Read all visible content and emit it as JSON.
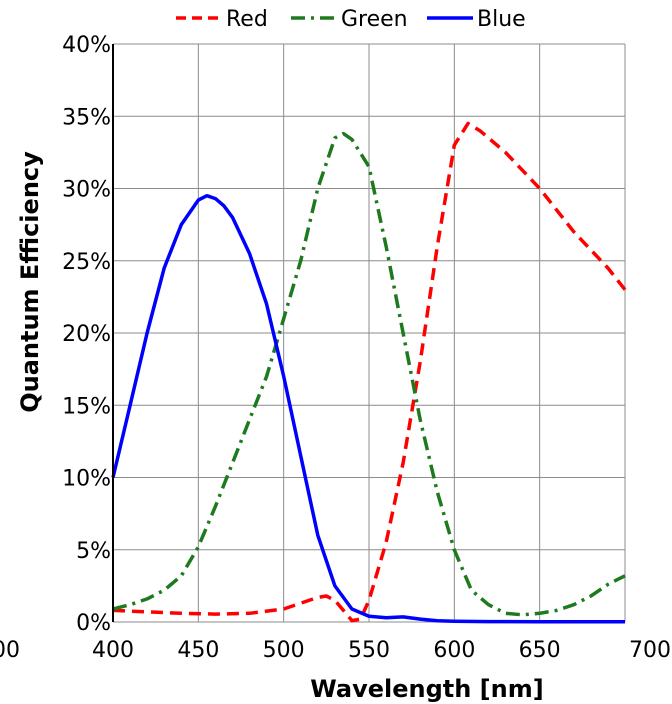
{
  "chart_data": {
    "type": "line",
    "xlabel": "Wavelength [nm]",
    "ylabel": "Quantum Efficiency",
    "xlim": [
      400,
      700
    ],
    "ylim": [
      0,
      40
    ],
    "x_ticks": [
      400,
      450,
      500,
      550,
      600,
      650,
      700
    ],
    "x_tick_labels": [
      "400",
      "450",
      "500",
      "550",
      "600",
      "650",
      "700"
    ],
    "extra_left_tick_label": "00",
    "y_ticks": [
      0,
      5,
      10,
      15,
      20,
      25,
      30,
      35,
      40
    ],
    "y_tick_labels": [
      "0%",
      "5%",
      "10%",
      "15%",
      "20%",
      "25%",
      "30%",
      "35%",
      "40%"
    ],
    "grid": true,
    "legend_position": "top",
    "series": [
      {
        "name": "Red",
        "color": "#ff0000",
        "style": "dashed",
        "x": [
          400,
          420,
          440,
          460,
          480,
          500,
          510,
          520,
          525,
          530,
          535,
          540,
          545,
          550,
          560,
          570,
          580,
          590,
          600,
          608,
          615,
          630,
          650,
          670,
          690,
          700
        ],
        "y": [
          0.8,
          0.7,
          0.6,
          0.55,
          0.6,
          0.9,
          1.3,
          1.7,
          1.8,
          1.5,
          0.8,
          0.1,
          0.2,
          1.5,
          5.5,
          11,
          18,
          26,
          33,
          34.5,
          34,
          32.5,
          30,
          27,
          24.5,
          23
        ]
      },
      {
        "name": "Green",
        "color": "#1e7a1e",
        "style": "dashdot",
        "x": [
          400,
          410,
          420,
          430,
          440,
          450,
          460,
          470,
          480,
          490,
          500,
          510,
          520,
          530,
          535,
          540,
          550,
          560,
          570,
          580,
          590,
          600,
          610,
          620,
          630,
          640,
          650,
          660,
          670,
          680,
          690,
          700
        ],
        "y": [
          0.9,
          1.2,
          1.6,
          2.2,
          3.2,
          5.2,
          8,
          11,
          14,
          17,
          21,
          25,
          30,
          33.5,
          33.8,
          33.4,
          31.5,
          26,
          20,
          14,
          9,
          5,
          2.2,
          1.2,
          0.6,
          0.5,
          0.6,
          0.8,
          1.2,
          1.8,
          2.6,
          3.2
        ]
      },
      {
        "name": "Blue",
        "color": "#0000ff",
        "style": "solid",
        "x": [
          400,
          410,
          420,
          430,
          440,
          450,
          455,
          460,
          465,
          470,
          480,
          490,
          500,
          510,
          520,
          530,
          540,
          550,
          560,
          570,
          580,
          590,
          600,
          620,
          650,
          700
        ],
        "y": [
          10,
          15,
          20,
          24.5,
          27.5,
          29.2,
          29.5,
          29.3,
          28.8,
          28,
          25.5,
          22,
          17,
          11.5,
          6,
          2.5,
          0.9,
          0.4,
          0.3,
          0.35,
          0.2,
          0.08,
          0.05,
          0.03,
          0.02,
          0.02
        ]
      }
    ]
  }
}
